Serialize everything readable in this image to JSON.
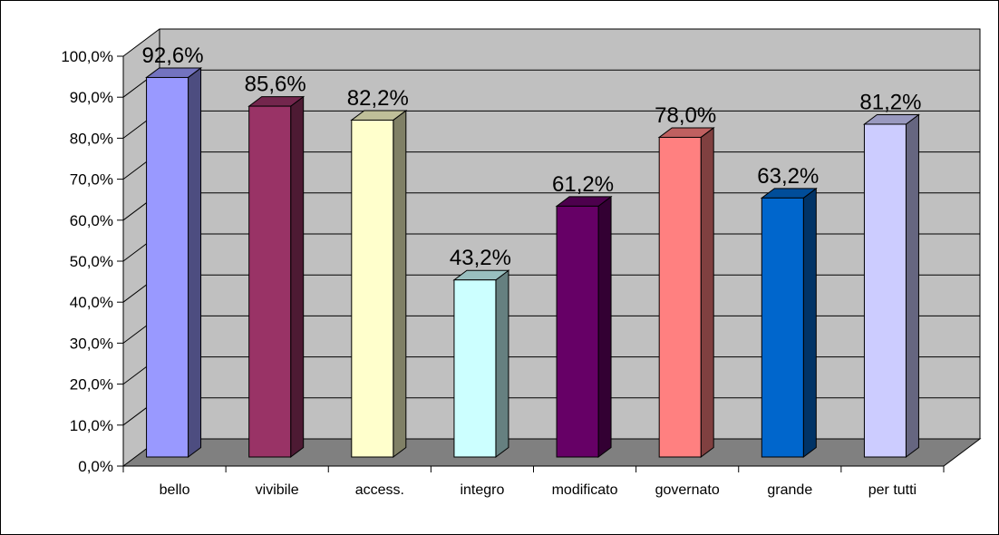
{
  "chart_data": {
    "type": "bar",
    "categories": [
      "bello",
      "vivibile",
      "access.",
      "integro",
      "modificato",
      "governato",
      "grande",
      "per tutti"
    ],
    "values": [
      92.6,
      85.6,
      82.2,
      43.2,
      61.2,
      78.0,
      63.2,
      81.2
    ],
    "data_labels": [
      "92,6%",
      "85,6%",
      "82,2%",
      "43,2%",
      "61,2%",
      "78,0%",
      "63,2%",
      "81,2%"
    ],
    "colors": [
      "#9999ff",
      "#993366",
      "#ffffcc",
      "#ccffff",
      "#660066",
      "#ff8080",
      "#0066cc",
      "#ccccff"
    ],
    "y_tick_labels": [
      "0,0%",
      "10,0%",
      "20,0%",
      "30,0%",
      "40,0%",
      "50,0%",
      "60,0%",
      "70,0%",
      "80,0%",
      "90,0%",
      "100,0%"
    ],
    "ylim": [
      0,
      100
    ],
    "grid": true,
    "three_d": true,
    "wall_color": "#c0c0c0",
    "floor_color": "#808080",
    "title": "",
    "xlabel": "",
    "ylabel": ""
  }
}
